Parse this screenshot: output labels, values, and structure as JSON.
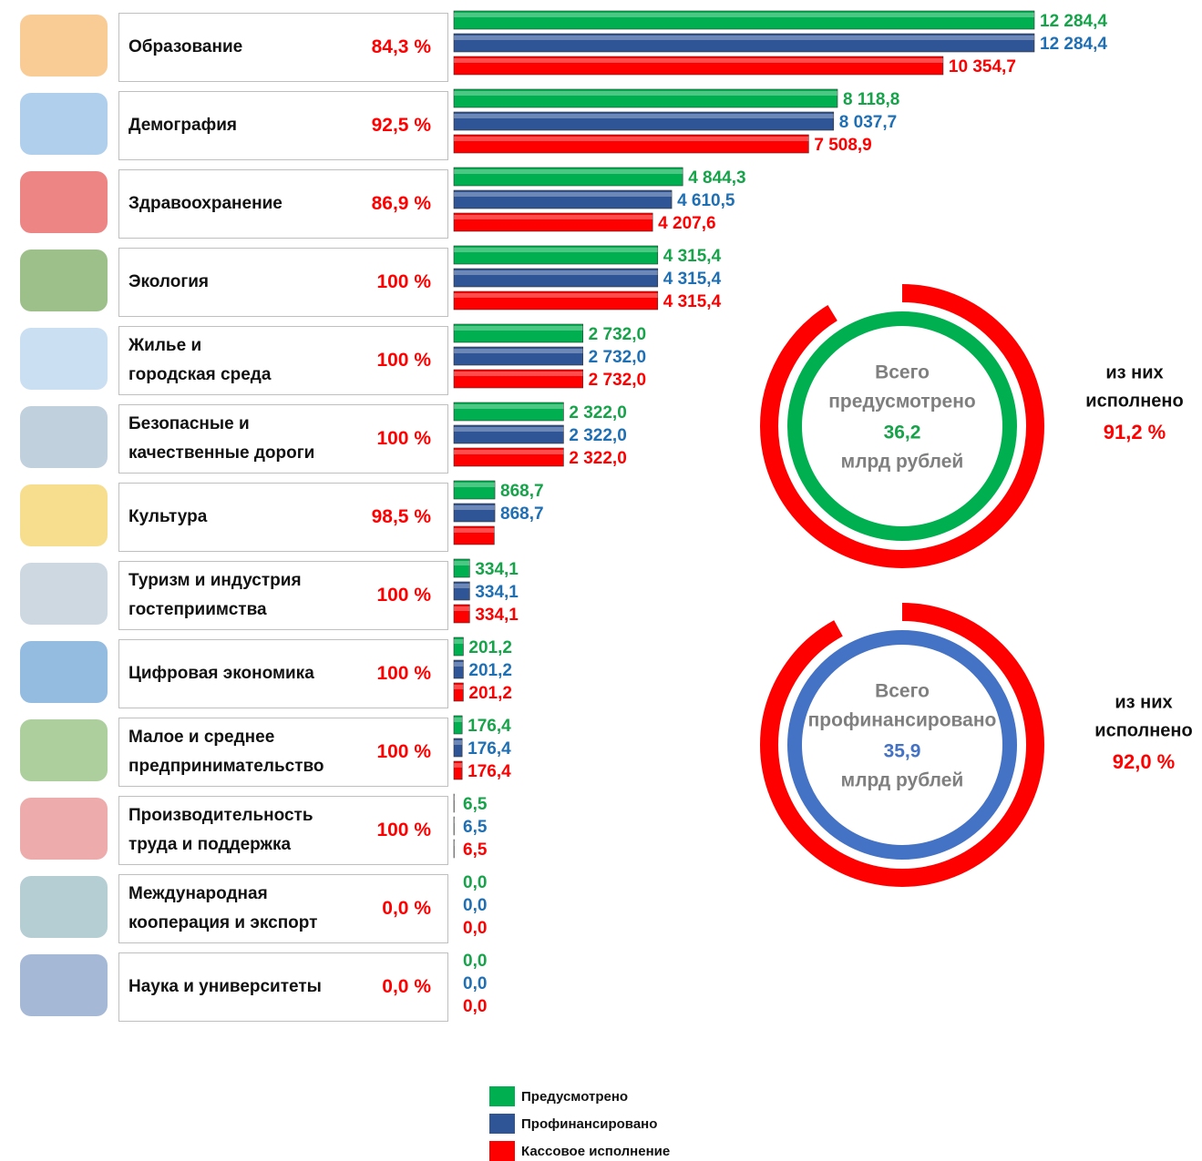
{
  "chart_data": [
    {
      "type": "hbar",
      "categories": [
        "Образование",
        "Демография",
        "Здравоохранение",
        "Экология",
        "Жилье и\nгородская среда",
        "Безопасные и\nкачественные дороги",
        "Культура",
        "Туризм и индустрия\nгостеприимства",
        "Цифровая экономика",
        "Малое и среднее\nпредпринимательство",
        "Производительность\nтруда и поддержка",
        "Международная\nкооперация и экспорт",
        "Наука и университеты"
      ],
      "completion": [
        "84,3 %",
        "92,5 %",
        "86,9 %",
        "100 %",
        "100 %",
        "100 %",
        "98,5 %",
        "100 %",
        "100 %",
        "100 %",
        "100 %",
        "0,0 %",
        "0,0 %"
      ],
      "series": [
        {
          "name": "Предусмотрено",
          "color": "#00b050",
          "label_color": "#16a34a",
          "values": [
            12284.4,
            8118.8,
            4844.3,
            4315.4,
            2732.0,
            2322.0,
            868.7,
            334.1,
            201.2,
            176.4,
            6.5,
            0.0,
            0.0
          ],
          "value_labels": [
            "12 284,4",
            "8 118,8",
            "4 844,3",
            "4 315,4",
            "2 732,0",
            "2 322,0",
            "868,7",
            "334,1",
            "201,2",
            "176,4",
            "6,5",
            "0,0",
            "0,0"
          ]
        },
        {
          "name": "Профинансировано",
          "color": "#2f5597",
          "label_color": "#1f6fb5",
          "values": [
            12284.4,
            8037.7,
            4610.5,
            4315.4,
            2732.0,
            2322.0,
            868.7,
            334.1,
            201.2,
            176.4,
            6.5,
            0.0,
            0.0
          ],
          "value_labels": [
            "12 284,4",
            "8 037,7",
            "4 610,5",
            "4 315,4",
            "2 732,0",
            "2 322,0",
            "868,7",
            "334,1",
            "201,2",
            "176,4",
            "6,5",
            "0,0",
            "0,0"
          ]
        },
        {
          "name": "Кассовое исполнение",
          "color": "#ff0000",
          "label_color": "#ff0000",
          "values": [
            10354.7,
            7508.9,
            4207.6,
            4315.4,
            2732.0,
            2322.0,
            855.7,
            334.1,
            201.2,
            176.4,
            6.5,
            0.0,
            0.0
          ],
          "value_labels": [
            "10 354,7",
            "7 508,9",
            "4 207,6",
            "4 315,4",
            "2 732,0",
            "2 322,0",
            null,
            "334,1",
            "201,2",
            "176,4",
            "6,5",
            "0,0",
            "0,0"
          ]
        }
      ]
    },
    {
      "type": "donut",
      "center_lines": [
        "Всего",
        "предусмотрено"
      ],
      "total": {
        "value": 36.2,
        "label": "36,2"
      },
      "unit": "млрд рублей",
      "inner_color": "#00b050",
      "total_color": "#16a34a",
      "ring_color": "#ff0000",
      "side_lines": [
        "из них",
        "исполнено"
      ],
      "value": 91.2,
      "value_label": "91,2 %"
    },
    {
      "type": "donut",
      "center_lines": [
        "Всего",
        "профинансировано"
      ],
      "total": {
        "value": 35.9,
        "label": "35,9"
      },
      "unit": "млрд рублей",
      "inner_color": "#4472c4",
      "total_color": "#4472c4",
      "ring_color": "#ff0000",
      "side_lines": [
        "из них",
        "исполнено"
      ],
      "value": 92.0,
      "value_label": "92,0 %"
    }
  ]
}
